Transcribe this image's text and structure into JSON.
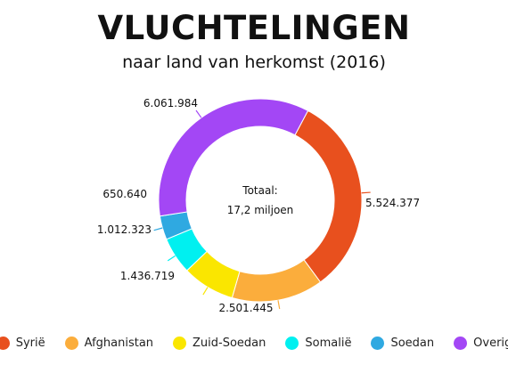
{
  "chart_data": {
    "type": "pie",
    "variant": "donut",
    "title": "VLUCHTELINGEN",
    "subtitle": "naar land van herkomst (2016)",
    "center_text": [
      "Totaal:",
      "17,2 miljoen"
    ],
    "categories": [
      "Syrië",
      "Afghanistan",
      "Zuid-Soedan",
      "Somalië",
      "Soedan",
      "Overig"
    ],
    "values": [
      5524377,
      2501445,
      1436719,
      1012323,
      650640,
      6061984
    ],
    "value_labels": [
      "5.524.377",
      "2.501.445",
      "1.436.719",
      "1.012.323",
      "650.640",
      "6.061.984"
    ],
    "colors": [
      "#e8501e",
      "#fbad3c",
      "#fae600",
      "#00f0f0",
      "#2fa9e1",
      "#a347f5"
    ],
    "legend_position": "bottom"
  }
}
